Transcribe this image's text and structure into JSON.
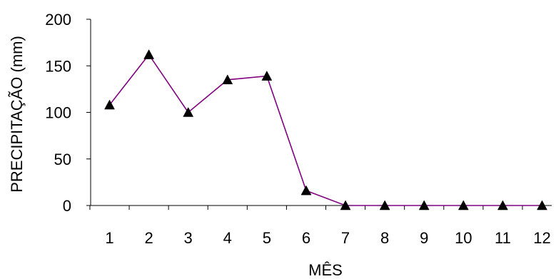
{
  "chart_data": {
    "type": "line",
    "xlabel": "MÊS",
    "ylabel": "PRECIPITAÇÃO (mm)",
    "categories": [
      "1",
      "2",
      "3",
      "4",
      "5",
      "6",
      "7",
      "8",
      "9",
      "10",
      "11",
      "12"
    ],
    "series": [
      {
        "values": [
          108,
          162,
          100,
          135,
          139,
          16,
          0,
          0,
          0,
          0,
          0,
          0
        ],
        "line_color": "#800080",
        "marker": "triangle",
        "marker_color": "#000000"
      }
    ],
    "ylim": [
      0,
      200
    ],
    "yticks": [
      0,
      50,
      100,
      150,
      200
    ],
    "grid": false,
    "legend": "none"
  }
}
